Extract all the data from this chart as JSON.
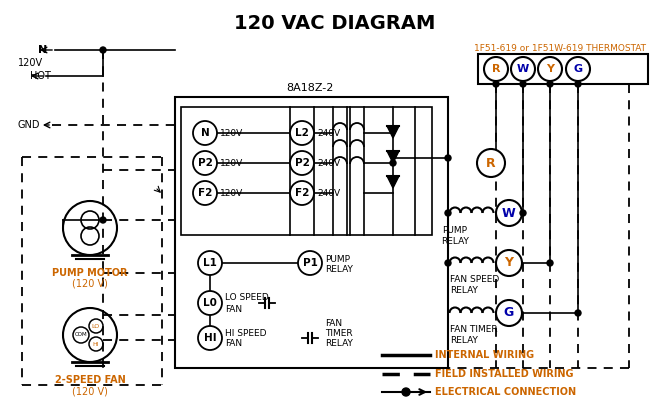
{
  "title": "120 VAC DIAGRAM",
  "bg_color": "#ffffff",
  "line_color": "#000000",
  "orange_color": "#cc6600",
  "blue_color": "#0000aa",
  "thermostat_label": "1F51-619 or 1F51W-619 THERMOSTAT",
  "control_label": "8A18Z-2",
  "legend_items": [
    {
      "label": "INTERNAL WIRING",
      "style": "solid"
    },
    {
      "label": "FIELD INSTALLED WIRING",
      "style": "dashed"
    },
    {
      "label": "ELECTRICAL CONNECTION",
      "style": "dot_arrow"
    }
  ],
  "terminal_labels": [
    "R",
    "W",
    "Y",
    "G"
  ],
  "terminal_colors": [
    "#cc6600",
    "#0000aa",
    "#cc6600",
    "#0000aa"
  ],
  "left_terminals": [
    "N",
    "P2",
    "F2"
  ],
  "left_voltages": [
    "120V",
    "120V",
    "120V"
  ],
  "right_terminals": [
    "L2",
    "P2",
    "F2"
  ],
  "right_voltages": [
    "240V",
    "240V",
    "240V"
  ]
}
